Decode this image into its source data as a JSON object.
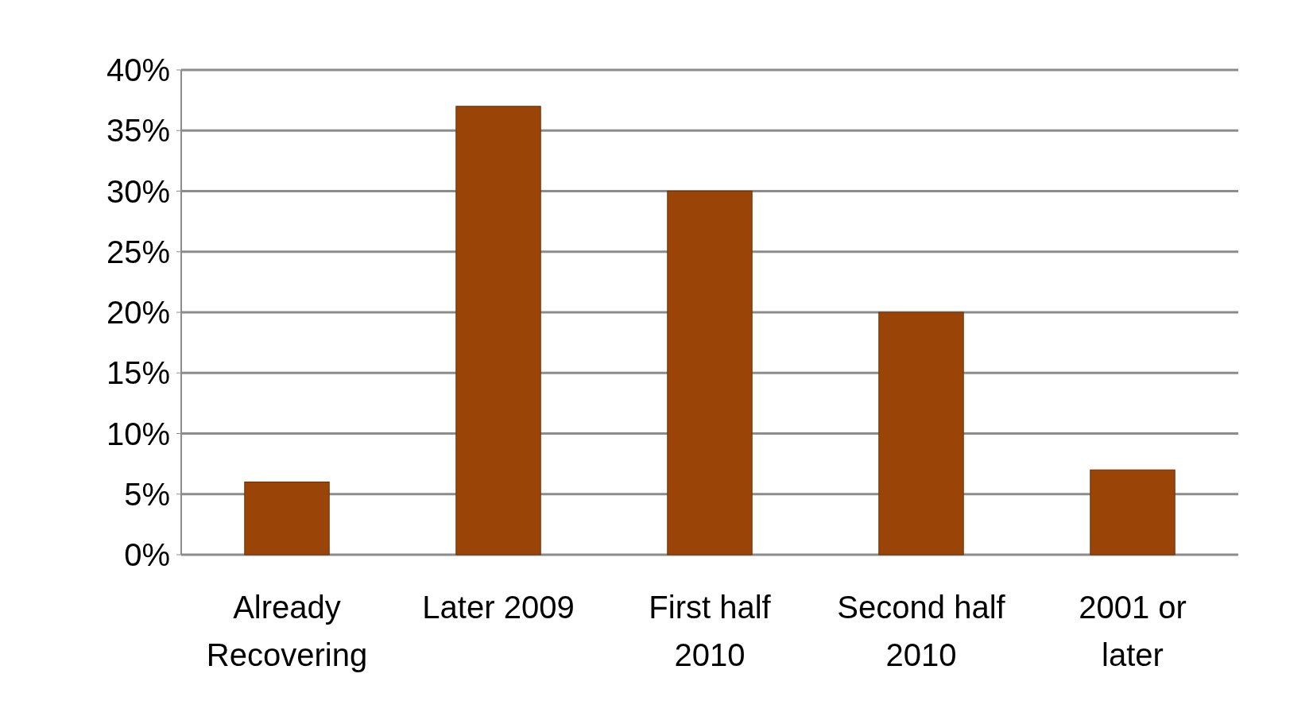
{
  "chart_data": {
    "type": "bar",
    "categories": [
      "Already Recovering",
      "Later 2009",
      "First half 2010",
      "Second half 2010",
      "2001 or later"
    ],
    "values": [
      6,
      37,
      30,
      20,
      7
    ],
    "color": "#9a4507",
    "ylim": [
      0,
      40
    ],
    "yticks": [
      {
        "value": 0,
        "label": "0%"
      },
      {
        "value": 5,
        "label": "5%"
      },
      {
        "value": 10,
        "label": "10%"
      },
      {
        "value": 15,
        "label": "15%"
      },
      {
        "value": 20,
        "label": "20%"
      },
      {
        "value": 25,
        "label": "25%"
      },
      {
        "value": 30,
        "label": "30%"
      },
      {
        "value": 35,
        "label": "35%"
      },
      {
        "value": 40,
        "label": "40%"
      }
    ],
    "grid": true
  }
}
